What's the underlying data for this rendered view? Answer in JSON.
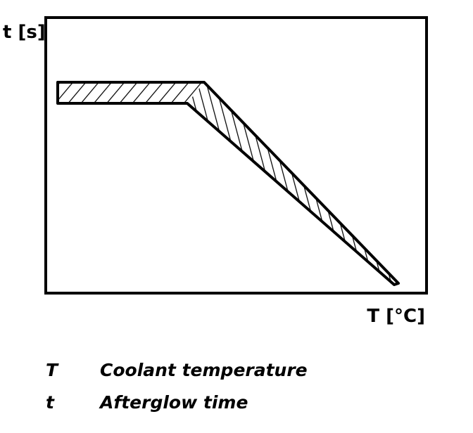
{
  "axes": {
    "y_label": "t [s]",
    "x_label": "T [°C]"
  },
  "legend": [
    {
      "symbol": "T",
      "description": "Coolant temperature"
    },
    {
      "symbol": "t",
      "description": "Afterglow time"
    }
  ]
}
